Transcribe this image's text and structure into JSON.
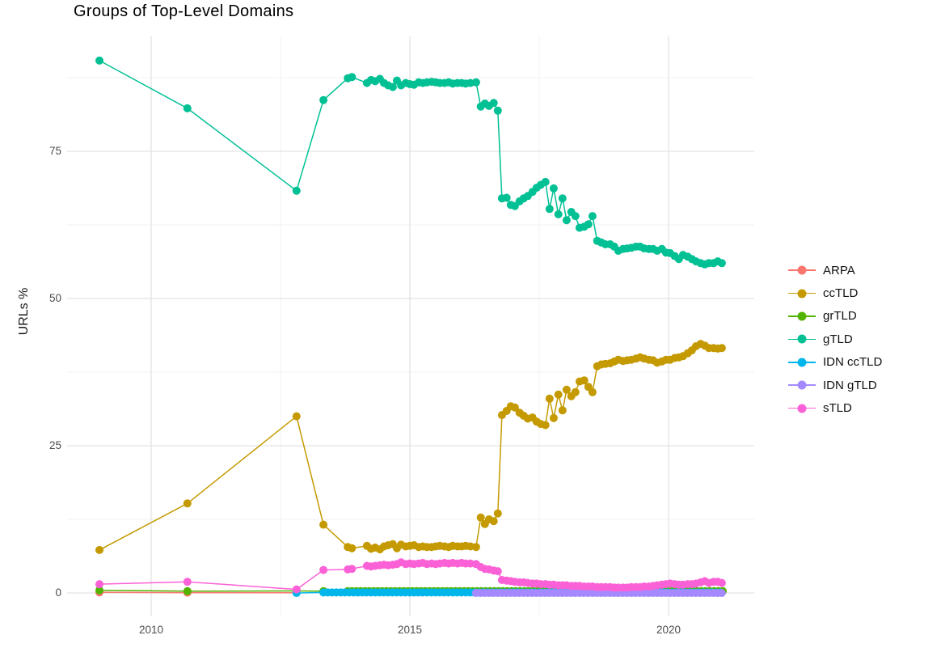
{
  "chart": {
    "title": "Groups of Top-Level Domains",
    "ylabel": "URLs %"
  },
  "colors": {
    "background": "#ffffff",
    "grid_major": "#e3e3e3",
    "grid_minor": "#f2f2f2",
    "tick_label": "#4d4d4d",
    "title_text": "#000000",
    "axis_title_text": "#1a1a1a",
    "legend_text": "#111111"
  },
  "chart_data": {
    "type": "line",
    "title": "Groups of Top-Level Domains",
    "xlabel": "",
    "ylabel": "URLs %",
    "xlim": [
      2008.4,
      2021.65
    ],
    "ylim": [
      -4,
      95
    ],
    "grid": true,
    "legend_position": "right",
    "x_tick_values": [
      2010,
      2015,
      2020
    ],
    "x_tick_labels": [
      "2010",
      "2015",
      "2020"
    ],
    "x_minor_ticks": [
      2012.5,
      2017.5
    ],
    "y_tick_values": [
      0,
      25,
      50,
      75
    ],
    "y_tick_labels": [
      "0",
      "25",
      "50",
      "75"
    ],
    "y_minor_ticks": [
      12.5,
      37.5,
      62.5,
      87.5
    ],
    "series": [
      {
        "name": "ARPA",
        "color": "#F8766D",
        "points": [
          [
            2009.0,
            0.1
          ],
          [
            2010.7,
            0.06
          ],
          [
            2012.81,
            0.03
          ]
        ]
      },
      {
        "name": "ccTLD",
        "color": "#C49A00",
        "points": [
          [
            2009.0,
            7.3
          ],
          [
            2010.7,
            15.2
          ],
          [
            2012.81,
            30.0
          ],
          [
            2013.33,
            11.6
          ],
          [
            2013.8,
            7.8
          ],
          [
            2013.88,
            7.6
          ],
          [
            2014.17,
            8.0
          ],
          [
            2014.25,
            7.5
          ],
          [
            2014.33,
            7.7
          ],
          [
            2014.42,
            7.4
          ],
          [
            2014.5,
            7.9
          ],
          [
            2014.58,
            8.1
          ],
          [
            2014.67,
            8.3
          ],
          [
            2014.75,
            7.6
          ],
          [
            2014.83,
            8.2
          ],
          [
            2014.92,
            7.9
          ],
          [
            2015.0,
            8.0
          ],
          [
            2015.08,
            8.1
          ],
          [
            2015.17,
            7.8
          ],
          [
            2015.25,
            7.9
          ],
          [
            2015.33,
            7.8
          ],
          [
            2015.42,
            7.8
          ],
          [
            2015.5,
            7.9
          ],
          [
            2015.58,
            8.0
          ],
          [
            2015.67,
            7.9
          ],
          [
            2015.75,
            7.8
          ],
          [
            2015.83,
            8.0
          ],
          [
            2015.92,
            7.9
          ],
          [
            2016.0,
            7.9
          ],
          [
            2016.08,
            8.0
          ],
          [
            2016.17,
            7.9
          ],
          [
            2016.28,
            7.8
          ],
          [
            2016.37,
            12.8
          ],
          [
            2016.45,
            11.7
          ],
          [
            2016.53,
            12.5
          ],
          [
            2016.62,
            12.2
          ],
          [
            2016.7,
            13.5
          ],
          [
            2016.78,
            30.2
          ],
          [
            2016.87,
            30.9
          ],
          [
            2016.95,
            31.7
          ],
          [
            2017.03,
            31.5
          ],
          [
            2017.12,
            30.6
          ],
          [
            2017.2,
            30.1
          ],
          [
            2017.28,
            29.6
          ],
          [
            2017.37,
            29.8
          ],
          [
            2017.45,
            29.1
          ],
          [
            2017.53,
            28.7
          ],
          [
            2017.62,
            28.5
          ],
          [
            2017.7,
            33.0
          ],
          [
            2017.78,
            29.7
          ],
          [
            2017.87,
            33.7
          ],
          [
            2017.95,
            31.0
          ],
          [
            2018.03,
            34.5
          ],
          [
            2018.12,
            33.4
          ],
          [
            2018.2,
            34.1
          ],
          [
            2018.28,
            35.9
          ],
          [
            2018.37,
            36.1
          ],
          [
            2018.45,
            35.0
          ],
          [
            2018.53,
            34.1
          ],
          [
            2018.62,
            38.5
          ],
          [
            2018.7,
            38.8
          ],
          [
            2018.78,
            38.9
          ],
          [
            2018.87,
            39.0
          ],
          [
            2018.95,
            39.3
          ],
          [
            2019.03,
            39.6
          ],
          [
            2019.12,
            39.4
          ],
          [
            2019.2,
            39.5
          ],
          [
            2019.28,
            39.6
          ],
          [
            2019.37,
            39.8
          ],
          [
            2019.45,
            40.0
          ],
          [
            2019.53,
            39.8
          ],
          [
            2019.62,
            39.6
          ],
          [
            2019.7,
            39.5
          ],
          [
            2019.78,
            39.1
          ],
          [
            2019.87,
            39.3
          ],
          [
            2019.95,
            39.6
          ],
          [
            2020.03,
            39.6
          ],
          [
            2020.12,
            39.9
          ],
          [
            2020.2,
            40.0
          ],
          [
            2020.28,
            40.2
          ],
          [
            2020.37,
            40.7
          ],
          [
            2020.45,
            41.2
          ],
          [
            2020.53,
            41.9
          ],
          [
            2020.62,
            42.3
          ],
          [
            2020.7,
            42.0
          ],
          [
            2020.78,
            41.6
          ],
          [
            2020.87,
            41.6
          ],
          [
            2020.95,
            41.5
          ],
          [
            2021.03,
            41.6
          ]
        ]
      },
      {
        "name": "grTLD",
        "color": "#53B400",
        "points": [
          [
            2009.0,
            0.45
          ],
          [
            2010.7,
            0.3
          ],
          [
            2012.81,
            0.35
          ],
          [
            2013.33,
            0.3
          ]
        ],
        "flat": {
          "from": 2013.8,
          "to": 2021.05,
          "step": 0.0833,
          "value": 0.3
        }
      },
      {
        "name": "gTLD",
        "color": "#00C094",
        "points": [
          [
            2009.0,
            90.4
          ],
          [
            2010.7,
            82.3
          ],
          [
            2012.81,
            68.3
          ],
          [
            2013.33,
            83.7
          ],
          [
            2013.8,
            87.4
          ],
          [
            2013.88,
            87.6
          ],
          [
            2014.17,
            86.6
          ],
          [
            2014.25,
            87.1
          ],
          [
            2014.33,
            86.9
          ],
          [
            2014.42,
            87.3
          ],
          [
            2014.5,
            86.6
          ],
          [
            2014.58,
            86.2
          ],
          [
            2014.67,
            85.9
          ],
          [
            2014.75,
            87.0
          ],
          [
            2014.83,
            86.2
          ],
          [
            2014.92,
            86.6
          ],
          [
            2015.0,
            86.4
          ],
          [
            2015.08,
            86.3
          ],
          [
            2015.17,
            86.7
          ],
          [
            2015.25,
            86.6
          ],
          [
            2015.33,
            86.7
          ],
          [
            2015.42,
            86.8
          ],
          [
            2015.5,
            86.7
          ],
          [
            2015.58,
            86.6
          ],
          [
            2015.67,
            86.6
          ],
          [
            2015.75,
            86.7
          ],
          [
            2015.83,
            86.5
          ],
          [
            2015.92,
            86.6
          ],
          [
            2016.0,
            86.6
          ],
          [
            2016.08,
            86.5
          ],
          [
            2016.17,
            86.6
          ],
          [
            2016.28,
            86.7
          ],
          [
            2016.37,
            82.6
          ],
          [
            2016.45,
            83.1
          ],
          [
            2016.53,
            82.7
          ],
          [
            2016.62,
            83.2
          ],
          [
            2016.7,
            81.9
          ],
          [
            2016.78,
            67.0
          ],
          [
            2016.87,
            67.1
          ],
          [
            2016.95,
            65.9
          ],
          [
            2017.03,
            65.7
          ],
          [
            2017.12,
            66.5
          ],
          [
            2017.2,
            67.0
          ],
          [
            2017.28,
            67.4
          ],
          [
            2017.37,
            68.1
          ],
          [
            2017.45,
            68.8
          ],
          [
            2017.53,
            69.3
          ],
          [
            2017.62,
            69.8
          ],
          [
            2017.7,
            65.2
          ],
          [
            2017.78,
            68.7
          ],
          [
            2017.87,
            64.3
          ],
          [
            2017.95,
            67.0
          ],
          [
            2018.03,
            63.3
          ],
          [
            2018.12,
            64.7
          ],
          [
            2018.2,
            64.0
          ],
          [
            2018.28,
            62.0
          ],
          [
            2018.37,
            62.2
          ],
          [
            2018.45,
            62.6
          ],
          [
            2018.53,
            64.0
          ],
          [
            2018.62,
            59.8
          ],
          [
            2018.7,
            59.5
          ],
          [
            2018.78,
            59.2
          ],
          [
            2018.87,
            59.2
          ],
          [
            2018.95,
            58.8
          ],
          [
            2019.03,
            58.1
          ],
          [
            2019.12,
            58.4
          ],
          [
            2019.2,
            58.5
          ],
          [
            2019.28,
            58.6
          ],
          [
            2019.37,
            58.8
          ],
          [
            2019.45,
            58.8
          ],
          [
            2019.53,
            58.5
          ],
          [
            2019.62,
            58.4
          ],
          [
            2019.7,
            58.4
          ],
          [
            2019.78,
            58.1
          ],
          [
            2019.87,
            58.4
          ],
          [
            2019.95,
            57.8
          ],
          [
            2020.03,
            57.7
          ],
          [
            2020.12,
            57.2
          ],
          [
            2020.2,
            56.7
          ],
          [
            2020.28,
            57.4
          ],
          [
            2020.37,
            57.1
          ],
          [
            2020.45,
            56.7
          ],
          [
            2020.53,
            56.3
          ],
          [
            2020.62,
            56.0
          ],
          [
            2020.7,
            55.8
          ],
          [
            2020.78,
            56.0
          ],
          [
            2020.87,
            56.0
          ],
          [
            2020.95,
            56.3
          ],
          [
            2021.03,
            56.0
          ]
        ]
      },
      {
        "name": "IDN ccTLD",
        "color": "#00B6EB",
        "points": [
          [
            2012.81,
            0.0
          ]
        ],
        "flat": {
          "from": 2013.33,
          "to": 2021.05,
          "step": 0.0833,
          "value": 0.08
        }
      },
      {
        "name": "IDN gTLD",
        "color": "#A58AFF",
        "points": [],
        "flat": {
          "from": 2016.28,
          "to": 2021.05,
          "step": 0.0833,
          "value": 0.0
        }
      },
      {
        "name": "sTLD",
        "color": "#FB61D7",
        "points": [
          [
            2009.0,
            1.5
          ],
          [
            2010.7,
            1.9
          ],
          [
            2012.81,
            0.6
          ],
          [
            2013.33,
            3.9
          ],
          [
            2013.8,
            4.0
          ],
          [
            2013.88,
            4.1
          ],
          [
            2014.17,
            4.6
          ],
          [
            2014.25,
            4.5
          ],
          [
            2014.33,
            4.6
          ],
          [
            2014.42,
            4.7
          ],
          [
            2014.5,
            4.8
          ],
          [
            2014.58,
            4.7
          ],
          [
            2014.67,
            4.8
          ],
          [
            2014.75,
            4.9
          ],
          [
            2014.83,
            5.2
          ],
          [
            2014.92,
            4.9
          ],
          [
            2015.0,
            5.0
          ],
          [
            2015.08,
            4.9
          ],
          [
            2015.17,
            5.0
          ],
          [
            2015.25,
            5.1
          ],
          [
            2015.33,
            4.9
          ],
          [
            2015.42,
            5.0
          ],
          [
            2015.5,
            4.9
          ],
          [
            2015.58,
            5.0
          ],
          [
            2015.67,
            5.1
          ],
          [
            2015.75,
            5.0
          ],
          [
            2015.83,
            5.1
          ],
          [
            2015.92,
            5.0
          ],
          [
            2016.0,
            5.1
          ],
          [
            2016.08,
            5.0
          ],
          [
            2016.17,
            5.0
          ],
          [
            2016.28,
            4.9
          ],
          [
            2016.37,
            4.4
          ],
          [
            2016.45,
            4.1
          ],
          [
            2016.53,
            4.0
          ],
          [
            2016.62,
            3.8
          ],
          [
            2016.7,
            3.7
          ],
          [
            2016.78,
            2.2
          ],
          [
            2016.87,
            2.1
          ],
          [
            2016.95,
            2.0
          ],
          [
            2017.03,
            1.9
          ],
          [
            2017.12,
            1.8
          ],
          [
            2017.2,
            1.8
          ],
          [
            2017.28,
            1.7
          ],
          [
            2017.37,
            1.6
          ],
          [
            2017.45,
            1.6
          ],
          [
            2017.53,
            1.5
          ],
          [
            2017.62,
            1.5
          ],
          [
            2017.7,
            1.4
          ],
          [
            2017.78,
            1.4
          ],
          [
            2017.87,
            1.3
          ],
          [
            2017.95,
            1.3
          ],
          [
            2018.03,
            1.3
          ],
          [
            2018.12,
            1.2
          ],
          [
            2018.2,
            1.2
          ],
          [
            2018.28,
            1.2
          ],
          [
            2018.37,
            1.1
          ],
          [
            2018.45,
            1.1
          ],
          [
            2018.53,
            1.1
          ],
          [
            2018.62,
            1.0
          ],
          [
            2018.7,
            1.0
          ],
          [
            2018.78,
            1.0
          ],
          [
            2018.87,
            1.0
          ],
          [
            2018.95,
            0.9
          ],
          [
            2019.03,
            0.9
          ],
          [
            2019.12,
            0.9
          ],
          [
            2019.2,
            0.9
          ],
          [
            2019.28,
            1.0
          ],
          [
            2019.37,
            1.0
          ],
          [
            2019.45,
            1.0
          ],
          [
            2019.53,
            1.1
          ],
          [
            2019.62,
            1.1
          ],
          [
            2019.7,
            1.2
          ],
          [
            2019.78,
            1.3
          ],
          [
            2019.87,
            1.4
          ],
          [
            2019.95,
            1.5
          ],
          [
            2020.03,
            1.6
          ],
          [
            2020.12,
            1.5
          ],
          [
            2020.2,
            1.4
          ],
          [
            2020.28,
            1.4
          ],
          [
            2020.37,
            1.5
          ],
          [
            2020.45,
            1.5
          ],
          [
            2020.53,
            1.6
          ],
          [
            2020.62,
            1.8
          ],
          [
            2020.7,
            2.0
          ],
          [
            2020.78,
            1.7
          ],
          [
            2020.87,
            1.9
          ],
          [
            2020.95,
            1.9
          ],
          [
            2021.03,
            1.7
          ]
        ]
      }
    ]
  }
}
